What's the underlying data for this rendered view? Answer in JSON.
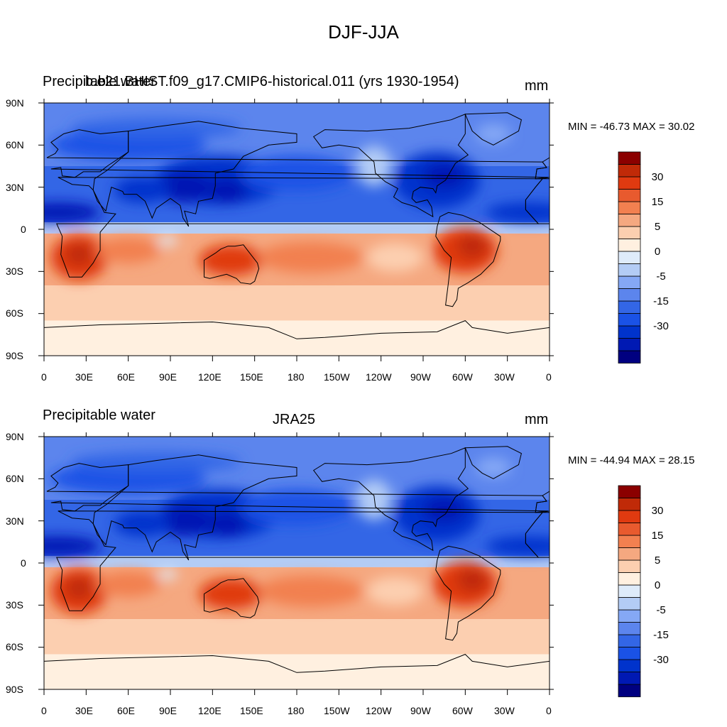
{
  "title": "DJF-JJA",
  "colors": {
    "levels": [
      "#000080",
      "#0019b3",
      "#0033cc",
      "#1a52e6",
      "#3366e6",
      "#5c85ed",
      "#85a8f5",
      "#b3ccf5",
      "#deebfa",
      "#fff0e0",
      "#fccfb0",
      "#f5a880",
      "#f28050",
      "#e85a2e",
      "#e03a10",
      "#c02a08",
      "#8b0000"
    ]
  },
  "colorbar": {
    "labels": [
      "30",
      "15",
      "5",
      "0",
      "-5",
      "-15",
      "-30"
    ]
  },
  "panels": [
    {
      "left_title": "Precipitable water",
      "center_title": "b.e21.BHIST.f09_g17.CMIP6-historical.011 (yrs 1930-1954)",
      "units": "mm",
      "minmax": "MIN = -46.73 MAX =  30.02",
      "lat_labels": [
        "90N",
        "60N",
        "30N",
        "0",
        "30S",
        "60S",
        "90S"
      ],
      "lon_labels": [
        "0",
        "30E",
        "60E",
        "90E",
        "120E",
        "150E",
        "180",
        "150W",
        "120W",
        "90W",
        "60W",
        "30W",
        "0"
      ]
    },
    {
      "left_title": "Precipitable water",
      "center_title": "JRA25",
      "units": "mm",
      "minmax": "MIN = -44.94 MAX =  28.15",
      "lat_labels": [
        "90N",
        "60N",
        "30N",
        "0",
        "30S",
        "60S",
        "90S"
      ],
      "lon_labels": [
        "0",
        "30E",
        "60E",
        "90E",
        "120E",
        "150E",
        "180",
        "150W",
        "120W",
        "90W",
        "60W",
        "30W",
        "0"
      ]
    }
  ]
}
